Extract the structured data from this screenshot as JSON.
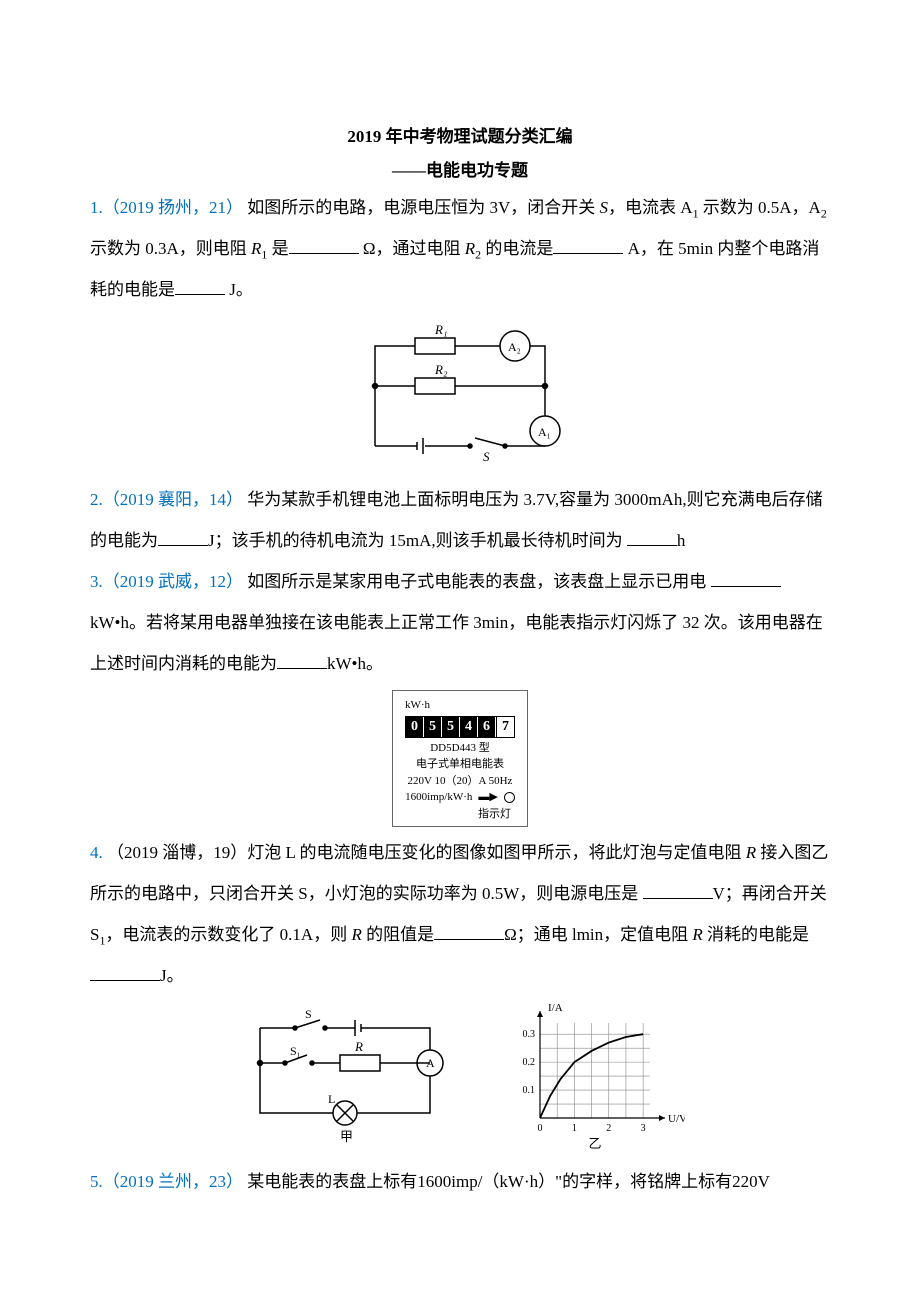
{
  "header": {
    "title_main": "2019 年中考物理试题分类汇编",
    "title_sub": "——电能电功专题"
  },
  "q1": {
    "ref": "1.（2019 扬州，21）",
    "body1": "如图所示的电路，电源电压恒为 3V，闭合开关 ",
    "S": "S",
    "body2": "，电流表 A",
    "sub1": "1",
    "body3": " 示数为 0.5A，A",
    "sub2": "2",
    "body4": " 示数为 0.3A，则电阻 ",
    "R": "R",
    "subR1": "1",
    "body5": " 是",
    "unit1": " Ω，通过电阻 ",
    "subR2": "2",
    "body6": " 的电流是",
    "unit2": " A，在 5min 内整个电路消耗的电能是",
    "unit3": " J。",
    "circuit": {
      "R1": "R₁",
      "R2": "R₂",
      "A1": "A₁",
      "A2": "A₂",
      "S": "S"
    }
  },
  "q2": {
    "ref": "2.（2019 襄阳，14）",
    "body1": "华为某款手机锂电池上面标明电压为 3.7V,容量为 3000mAh,则它充满电后存储的电能为",
    "unit1": "J；该手机的待机电流为 15mA,则该手机最长待机时间为",
    "unit2": "h"
  },
  "q3": {
    "ref": "3.（2019 武威，12）",
    "body1": "如图所示是某家用电子式电能表的表盘，该表盘上显示已用电",
    "unit1": "kW•h。若将某用电器单独接在该电能表上正常工作 3min，电能表指示灯闪烁了 32 次。该用电器在上述时间内消耗的电能为",
    "unit2": "kW•h。",
    "meter": {
      "unit_label": "kW·h",
      "digits": [
        "0",
        "5",
        "5",
        "4",
        "6",
        "7"
      ],
      "model": "DD5D443 型",
      "type": "电子式单相电能表",
      "rating": "220V  10（20）A  50Hz",
      "imp": "1600imp/kW·h",
      "indicator": "指示灯"
    }
  },
  "q4": {
    "ref": "4.",
    "ref2": "（2019 淄博，19）灯泡 L 的电流随电压变化的图像如图甲所示，将此灯泡与定值电阻 ",
    "R": "R",
    "body1a": " 接入图乙所示的电路中，只闭合开关 S，小灯泡的实际功率为 0.5W，则电源电压是",
    "unit1": "V；再闭合开关 S",
    "sub1": "1",
    "body2": "，电流表的示数变化了 0.1A，则 ",
    "body2b": "的阻值是",
    "unit2": "Ω；通电 lmin，定值电阻 ",
    "body3": "消耗的电能是",
    "unit3": "J。",
    "circuit": {
      "S": "S",
      "S1": "S₁",
      "R": "R",
      "A": "A",
      "L": "L",
      "cap_left": "甲",
      "cap_right": "乙"
    },
    "chart": {
      "ylabel": "I/A",
      "xlabel": "U/V",
      "yticks": [
        "0.1",
        "0.2",
        "0.3"
      ],
      "xticks": [
        "0",
        "1",
        "2",
        "3"
      ],
      "grid_color": "#888888",
      "line_color": "#000000",
      "bg": "#ffffff",
      "points": [
        [
          0,
          0
        ],
        [
          0.3,
          0.08
        ],
        [
          0.6,
          0.14
        ],
        [
          1.0,
          0.2
        ],
        [
          1.5,
          0.24
        ],
        [
          2.0,
          0.27
        ],
        [
          2.5,
          0.29
        ],
        [
          3.0,
          0.3
        ]
      ],
      "xlim": [
        0,
        3.2
      ],
      "ylim": [
        0,
        0.34
      ]
    }
  },
  "q5": {
    "ref": "5.（2019 兰州，23）",
    "body1": "某电能表的表盘上标有1600imp/（kW·h）\"的字样，将铭牌上标有220V"
  }
}
